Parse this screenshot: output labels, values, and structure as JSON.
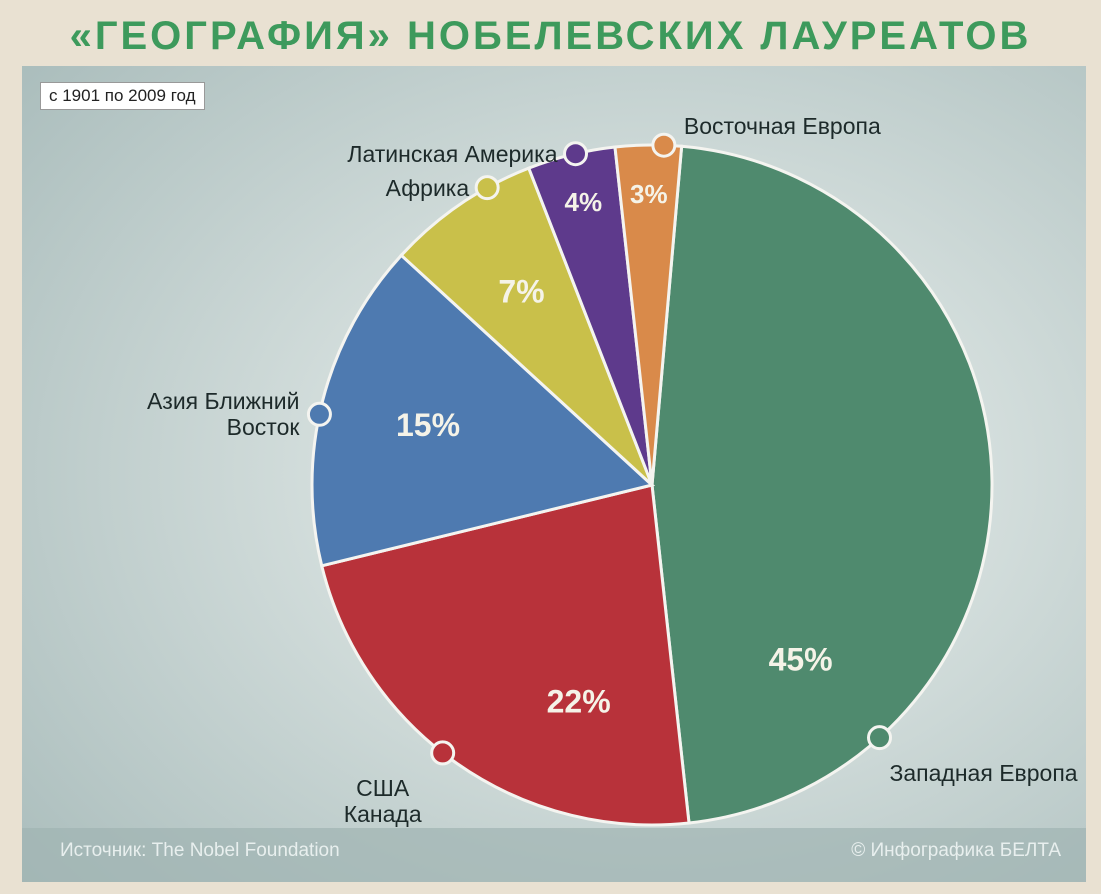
{
  "chart_data": {
    "type": "pie",
    "title": "«ГЕОГРАФИЯ» НОБЕЛЕВСКИХ ЛАУРЕАТОВ",
    "subtitle": "с 1901 по 2009 год",
    "categories": [
      "Западная Европа",
      "США Канада",
      "Азия Ближний Восток",
      "Африка",
      "Латинская Америка",
      "Восточная Европа"
    ],
    "values": [
      45,
      22,
      15,
      7,
      4,
      3
    ],
    "value_labels": [
      "45%",
      "22%",
      "15%",
      "7%",
      "4%",
      "3%"
    ],
    "colors": [
      "#4f8a6e",
      "#b8323a",
      "#4e7ab0",
      "#c9c04a",
      "#5e3a8c",
      "#d98a4a"
    ],
    "source": "Источник: The Nobel Foundation",
    "credit": "© Инфографика БЕЛТА"
  }
}
